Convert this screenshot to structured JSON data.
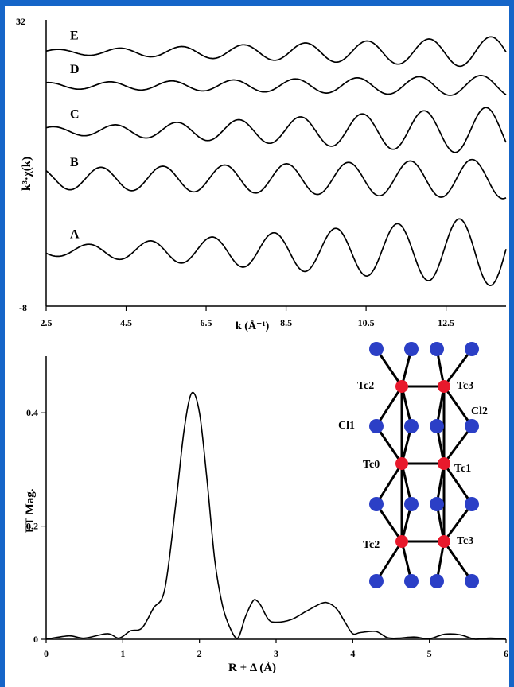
{
  "accent_border_color": "#1565c8",
  "chart_data": [
    {
      "type": "line",
      "xlabel": "k (Å⁻¹)",
      "ylabel": "k³·χ(k)",
      "xlim": [
        2.5,
        14.0
      ],
      "ylim": [
        -8,
        32
      ],
      "x_ticks": [
        "2.5",
        "4.5",
        "6.5",
        "8.5",
        "10.5",
        "12.5"
      ],
      "y_ticks": [
        "32",
        "-8"
      ],
      "series_labels": [
        "E",
        "D",
        "C",
        "B",
        "A"
      ],
      "grid": false,
      "description_note": "Stacked EXAFS oscillations, offset vertically",
      "series": [
        {
          "name": "E",
          "offset": 27.5,
          "amp_start": 0.35,
          "amp_end": 2.2,
          "freq": 3.25,
          "phase": 0.4
        },
        {
          "name": "D",
          "offset": 22.8,
          "amp_start": 0.45,
          "amp_end": 1.5,
          "freq": 3.25,
          "phase": 1.4
        },
        {
          "name": "C",
          "offset": 16.5,
          "amp_start": 0.55,
          "amp_end": 3.4,
          "freq": 3.25,
          "phase": 0.9
        },
        {
          "name": "B",
          "offset": 9.8,
          "amp_start": 1.5,
          "amp_end": 2.8,
          "freq": 3.25,
          "phase": 2.3
        },
        {
          "name": "A",
          "offset": -0.3,
          "amp_start": 0.7,
          "amp_end": 5.0,
          "freq": 3.25,
          "phase": 3.6
        }
      ]
    },
    {
      "type": "line",
      "xlabel": "R + Δ (Å)",
      "ylabel": "FT Mag.",
      "xlim": [
        0,
        6
      ],
      "ylim": [
        0,
        0.5
      ],
      "x_ticks": [
        "0",
        "1",
        "2",
        "3",
        "4",
        "5",
        "6"
      ],
      "y_ticks": [
        "0",
        "0.2",
        "0.4"
      ],
      "grid": false,
      "x": [
        0,
        0.3,
        0.5,
        0.8,
        0.95,
        1.1,
        1.25,
        1.4,
        1.55,
        1.7,
        1.8,
        1.9,
        2.0,
        2.1,
        2.2,
        2.3,
        2.4,
        2.5,
        2.6,
        2.7,
        2.75,
        2.8,
        2.9,
        3.0,
        3.2,
        3.4,
        3.6,
        3.7,
        3.8,
        3.9,
        4.0,
        4.1,
        4.3,
        4.45,
        4.6,
        4.8,
        5.0,
        5.2,
        5.4,
        5.6,
        5.8,
        6.0
      ],
      "y": [
        0.0,
        0.006,
        0.002,
        0.01,
        0.002,
        0.015,
        0.02,
        0.055,
        0.09,
        0.25,
        0.37,
        0.435,
        0.4,
        0.28,
        0.14,
        0.06,
        0.02,
        0.002,
        0.04,
        0.068,
        0.068,
        0.06,
        0.035,
        0.03,
        0.035,
        0.05,
        0.064,
        0.063,
        0.052,
        0.03,
        0.01,
        0.012,
        0.014,
        0.003,
        0.002,
        0.004,
        0.001,
        0.009,
        0.008,
        0.0,
        0.002,
        0.0
      ]
    }
  ],
  "structure_diagram": {
    "atom_labels": {
      "tc2_top": "Tc2",
      "tc3_top": "Tc3",
      "cl1": "Cl1",
      "cl2": "Cl2",
      "tc0": "Tc0",
      "tc1": "Tc1",
      "tc2_bottom": "Tc2",
      "tc3_bottom": "Tc3"
    },
    "tc_color": "#e8192c",
    "cl_color": "#2b3fc6"
  }
}
